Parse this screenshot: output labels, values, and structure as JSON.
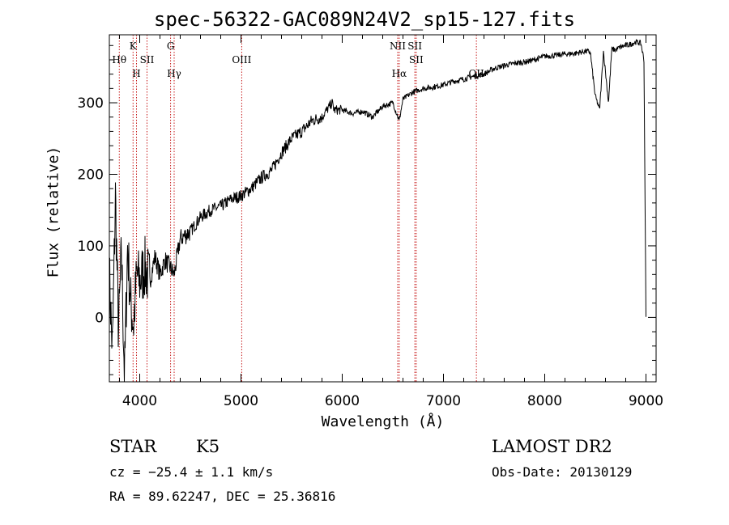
{
  "chart_data": {
    "type": "line",
    "title": "spec-56322-GAC089N24V2_sp15-127.fits",
    "xlabel": "Wavelength (Å)",
    "ylabel": "Flux (relative)",
    "xlim": [
      3700,
      9100
    ],
    "ylim": [
      -90,
      395
    ],
    "xticks": [
      4000,
      5000,
      6000,
      7000,
      8000,
      9000
    ],
    "yticks": [
      0,
      100,
      200,
      300
    ],
    "series": [
      {
        "name": "spectrum",
        "x": [
          3700,
          3730,
          3760,
          3790,
          3820,
          3850,
          3880,
          3910,
          3940,
          3970,
          4000,
          4050,
          4100,
          4150,
          4200,
          4250,
          4300,
          4340,
          4400,
          4450,
          4500,
          4600,
          4700,
          4800,
          4900,
          5000,
          5100,
          5200,
          5300,
          5400,
          5500,
          5600,
          5700,
          5800,
          5900,
          5920,
          6000,
          6100,
          6200,
          6300,
          6400,
          6500,
          6563,
          6600,
          6700,
          6800,
          6900,
          7000,
          7100,
          7200,
          7300,
          7400,
          7500,
          7600,
          7700,
          7800,
          7900,
          8000,
          8100,
          8200,
          8300,
          8400,
          8450,
          8498,
          8542,
          8580,
          8630,
          8662,
          8700,
          8750,
          8800,
          8850,
          8900,
          8950,
          8980,
          9000
        ],
        "y": [
          60,
          -50,
          170,
          -20,
          90,
          -85,
          100,
          20,
          -10,
          60,
          50,
          70,
          50,
          85,
          60,
          80,
          70,
          60,
          110,
          115,
          120,
          140,
          150,
          155,
          165,
          170,
          180,
          195,
          205,
          230,
          250,
          260,
          275,
          280,
          300,
          290,
          290,
          285,
          288,
          280,
          295,
          300,
          275,
          305,
          315,
          320,
          322,
          325,
          330,
          333,
          337,
          340,
          348,
          352,
          355,
          357,
          360,
          365,
          366,
          368,
          369,
          372,
          371,
          310,
          290,
          372,
          300,
          375,
          374,
          378,
          380,
          382,
          385,
          383,
          360,
          0
        ]
      }
    ],
    "lines": [
      {
        "label": "Hθ",
        "wavelength": 3798,
        "row": 2
      },
      {
        "label": "K",
        "wavelength": 3934,
        "row": 1
      },
      {
        "label": "H",
        "wavelength": 3968,
        "row": 3
      },
      {
        "label": "SII",
        "wavelength": 4072,
        "row": 2
      },
      {
        "label": "G",
        "wavelength": 4305,
        "row": 1
      },
      {
        "label": "Hγ",
        "wavelength": 4340,
        "row": 3
      },
      {
        "label": "OIII",
        "wavelength": 5007,
        "row": 2
      },
      {
        "label": "NII",
        "wavelength": 6548,
        "row": 1
      },
      {
        "label": "Hα",
        "wavelength": 6563,
        "row": 3
      },
      {
        "label": "SII",
        "wavelength": 6717,
        "row": 1
      },
      {
        "label": "SII",
        "wavelength": 6731,
        "row": 2
      },
      {
        "label": "OII",
        "wavelength": 7325,
        "row": 3
      }
    ]
  },
  "info": {
    "object_class": "STAR",
    "subclass": "K5",
    "survey": "LAMOST DR2",
    "cz": "cz = −25.4 ± 1.1 km/s",
    "obs_date": "Obs-Date: 20130129",
    "coords": "RA =  89.62247, DEC =  25.36816"
  }
}
